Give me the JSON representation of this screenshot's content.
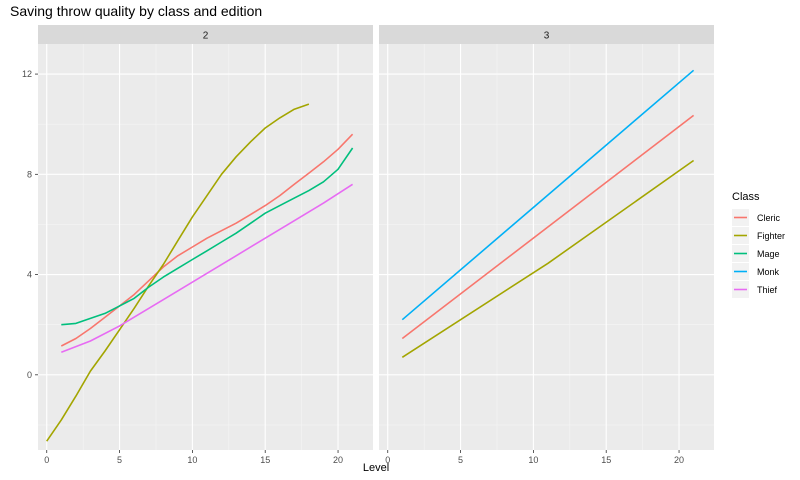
{
  "chart_data": {
    "type": "line",
    "title": "Saving throw quality by class and edition",
    "xlabel": "Level",
    "ylabel": "",
    "facet_labels": [
      "2",
      "3"
    ],
    "xlim": [
      -0.6,
      22.4
    ],
    "ylim": [
      -3.0,
      13.2
    ],
    "x_ticks": [
      0,
      5,
      10,
      15,
      20
    ],
    "y_ticks": [
      0,
      4,
      8,
      12
    ],
    "legend_title": "Class",
    "legend_position": "right",
    "grid": true,
    "series_colors": {
      "Cleric": "#F8766D",
      "Fighter": "#A3A500",
      "Mage": "#00BF7D",
      "Monk": "#00B0F6",
      "Thief": "#E76BF3"
    },
    "legend": [
      "Cleric",
      "Fighter",
      "Mage",
      "Monk",
      "Thief"
    ],
    "panels": [
      {
        "label": "2",
        "series": [
          {
            "name": "Cleric",
            "x": [
              1,
              2,
              3,
              4,
              5,
              6,
              7,
              8,
              9,
              10,
              11,
              12,
              13,
              14,
              15,
              16,
              17,
              18,
              19,
              20,
              21
            ],
            "y": [
              1.15,
              1.45,
              1.85,
              2.3,
              2.75,
              3.2,
              3.75,
              4.3,
              4.75,
              5.1,
              5.45,
              5.75,
              6.05,
              6.4,
              6.75,
              7.15,
              7.6,
              8.05,
              8.5,
              9.0,
              9.6
            ]
          },
          {
            "name": "Fighter",
            "x": [
              0,
              1,
              2,
              3,
              4,
              5,
              6,
              7,
              8,
              9,
              10,
              11,
              12,
              13,
              14,
              15,
              16,
              17,
              18
            ],
            "y": [
              -2.65,
              -1.8,
              -0.85,
              0.15,
              0.95,
              1.8,
              2.65,
              3.55,
              4.4,
              5.35,
              6.3,
              7.15,
              8.0,
              8.7,
              9.3,
              9.85,
              10.25,
              10.6,
              10.8
            ]
          },
          {
            "name": "Mage",
            "x": [
              1,
              2,
              3,
              4,
              5,
              6,
              7,
              8,
              9,
              10,
              11,
              12,
              13,
              14,
              15,
              16,
              17,
              18,
              19,
              20,
              21
            ],
            "y": [
              2.0,
              2.05,
              2.25,
              2.45,
              2.75,
              3.05,
              3.5,
              3.9,
              4.25,
              4.6,
              4.95,
              5.3,
              5.65,
              6.05,
              6.45,
              6.75,
              7.05,
              7.35,
              7.7,
              8.2,
              9.05
            ]
          },
          {
            "name": "Thief",
            "x": [
              1,
              3,
              5,
              7,
              9,
              11,
              13,
              15,
              17,
              19,
              21
            ],
            "y": [
              0.9,
              1.35,
              1.95,
              2.65,
              3.35,
              4.05,
              4.75,
              5.45,
              6.15,
              6.85,
              7.6
            ]
          }
        ]
      },
      {
        "label": "3",
        "series": [
          {
            "name": "Cleric",
            "x": [
              1,
              21
            ],
            "y": [
              1.45,
              10.35
            ]
          },
          {
            "name": "Fighter",
            "x": [
              1,
              11,
              21
            ],
            "y": [
              0.7,
              4.45,
              8.55
            ]
          },
          {
            "name": "Monk",
            "x": [
              1,
              21
            ],
            "y": [
              2.2,
              12.15
            ]
          }
        ]
      }
    ]
  }
}
